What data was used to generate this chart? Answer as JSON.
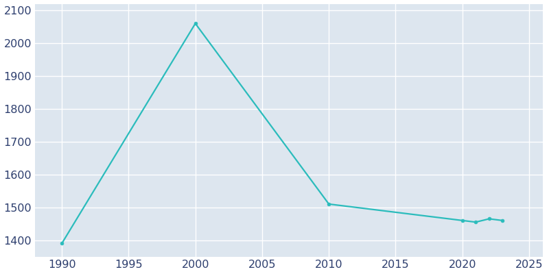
{
  "years": [
    1990,
    2000,
    2010,
    2020,
    2021,
    2022,
    2023
  ],
  "population": [
    1390,
    2060,
    1510,
    1460,
    1455,
    1465,
    1460
  ],
  "line_color": "#2BBCBC",
  "marker": "o",
  "marker_size": 3.5,
  "line_width": 1.6,
  "axes_bg_color": "#DDE6EF",
  "fig_bg_color": "#FFFFFF",
  "grid_color": "#FFFFFF",
  "grid_linewidth": 1.0,
  "xlim": [
    1988,
    2026
  ],
  "ylim": [
    1350,
    2120
  ],
  "xticks": [
    1990,
    1995,
    2000,
    2005,
    2010,
    2015,
    2020,
    2025
  ],
  "yticks": [
    1400,
    1500,
    1600,
    1700,
    1800,
    1900,
    2000,
    2100
  ],
  "tick_label_color": "#2D3E6E",
  "tick_fontsize": 11.5
}
